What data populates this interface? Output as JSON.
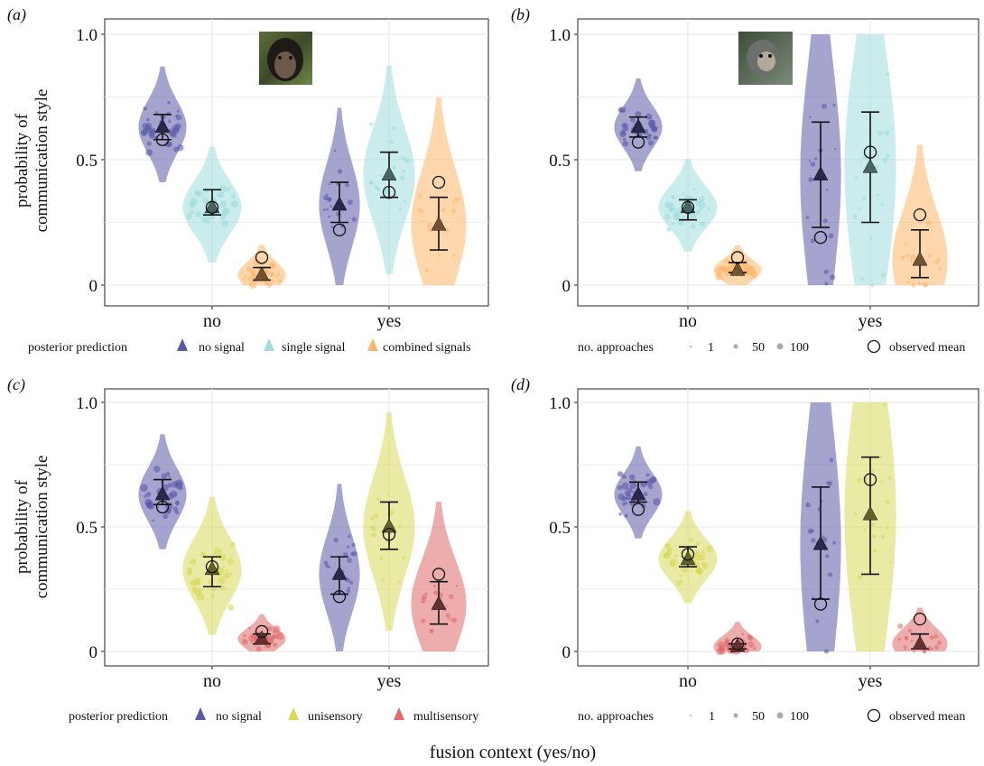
{
  "figure": {
    "shared_xlabel": "fusion context (yes/no)",
    "shared_ylabel_line1": "probability of",
    "shared_ylabel_line2": "communication style"
  },
  "legends": {
    "posterior": {
      "title": "posterior prediction",
      "items_ab": [
        "no signal",
        "single signal",
        "combined signals"
      ],
      "items_cd": [
        "no signal",
        "unisensory",
        "multisensory"
      ]
    },
    "approaches": {
      "title": "no. approaches",
      "sizes": [
        "1",
        "50",
        "100"
      ],
      "observed": "observed mean"
    }
  },
  "colors": {
    "no_signal": "#5b5aa8",
    "single_signal": "#9fdcdc",
    "combined_signals": "#fdb66a",
    "unisensory": "#d7d95a",
    "multisensory": "#e06a6a",
    "grid": "#e6e6e6"
  },
  "images": {
    "panel_a": "chimpanzee-photo",
    "panel_b": "monkey-photo"
  },
  "chart_data": [
    {
      "panel": "(a)",
      "type": "scatter",
      "categories": [
        "no",
        "yes"
      ],
      "ylim": [
        0,
        1
      ],
      "yticks": [
        "0",
        "0.5",
        "1.0"
      ],
      "series": [
        {
          "key": "no_signal",
          "name": "no signal",
          "posterior_mean": [
            0.63,
            0.32
          ],
          "ci_low": [
            0.58,
            0.25
          ],
          "ci_high": [
            0.68,
            0.41
          ],
          "observed_mean": [
            0.58,
            0.22
          ]
        },
        {
          "key": "single_signal",
          "name": "single signal",
          "posterior_mean": [
            0.31,
            0.44
          ],
          "ci_low": [
            0.28,
            0.35
          ],
          "ci_high": [
            0.38,
            0.53
          ],
          "observed_mean": [
            0.31,
            0.37
          ]
        },
        {
          "key": "combined_signals",
          "name": "combined signals",
          "posterior_mean": [
            0.04,
            0.24
          ],
          "ci_low": [
            0.02,
            0.14
          ],
          "ci_high": [
            0.07,
            0.35
          ],
          "observed_mean": [
            0.11,
            0.41
          ]
        }
      ]
    },
    {
      "panel": "(b)",
      "type": "scatter",
      "categories": [
        "no",
        "yes"
      ],
      "ylim": [
        0,
        1
      ],
      "yticks": [
        "0",
        "0.5",
        "1.0"
      ],
      "series": [
        {
          "key": "no_signal",
          "name": "no signal",
          "posterior_mean": [
            0.63,
            0.44
          ],
          "ci_low": [
            0.59,
            0.23
          ],
          "ci_high": [
            0.67,
            0.65
          ],
          "observed_mean": [
            0.57,
            0.19
          ]
        },
        {
          "key": "single_signal",
          "name": "single signal",
          "posterior_mean": [
            0.31,
            0.47
          ],
          "ci_low": [
            0.26,
            0.25
          ],
          "ci_high": [
            0.34,
            0.69
          ],
          "observed_mean": [
            0.31,
            0.53
          ]
        },
        {
          "key": "combined_signals",
          "name": "combined signals",
          "posterior_mean": [
            0.06,
            0.1
          ],
          "ci_low": [
            0.05,
            0.03
          ],
          "ci_high": [
            0.09,
            0.22
          ],
          "observed_mean": [
            0.11,
            0.28
          ]
        }
      ]
    },
    {
      "panel": "(c)",
      "type": "scatter",
      "categories": [
        "no",
        "yes"
      ],
      "ylim": [
        0,
        1
      ],
      "yticks": [
        "0",
        "0.5",
        "1.0"
      ],
      "series": [
        {
          "key": "no_signal",
          "name": "no signal",
          "posterior_mean": [
            0.63,
            0.31
          ],
          "ci_low": [
            0.59,
            0.23
          ],
          "ci_high": [
            0.69,
            0.38
          ],
          "observed_mean": [
            0.58,
            0.22
          ]
        },
        {
          "key": "unisensory",
          "name": "unisensory",
          "posterior_mean": [
            0.33,
            0.5
          ],
          "ci_low": [
            0.26,
            0.41
          ],
          "ci_high": [
            0.38,
            0.6
          ],
          "observed_mean": [
            0.34,
            0.47
          ]
        },
        {
          "key": "multisensory",
          "name": "multisensory",
          "posterior_mean": [
            0.05,
            0.19
          ],
          "ci_low": [
            0.03,
            0.11
          ],
          "ci_high": [
            0.07,
            0.28
          ],
          "observed_mean": [
            0.08,
            0.31
          ]
        }
      ]
    },
    {
      "panel": "(d)",
      "type": "scatter",
      "categories": [
        "no",
        "yes"
      ],
      "ylim": [
        0,
        1
      ],
      "yticks": [
        "0",
        "0.5",
        "1.0"
      ],
      "series": [
        {
          "key": "no_signal",
          "name": "no signal",
          "posterior_mean": [
            0.63,
            0.43
          ],
          "ci_low": [
            0.6,
            0.21
          ],
          "ci_high": [
            0.68,
            0.66
          ],
          "observed_mean": [
            0.57,
            0.19
          ]
        },
        {
          "key": "unisensory",
          "name": "unisensory",
          "posterior_mean": [
            0.37,
            0.55
          ],
          "ci_low": [
            0.34,
            0.31
          ],
          "ci_high": [
            0.42,
            0.78
          ],
          "observed_mean": [
            0.39,
            0.69
          ]
        },
        {
          "key": "multisensory",
          "name": "multisensory",
          "posterior_mean": [
            0.02,
            0.03
          ],
          "ci_low": [
            0.01,
            0.01
          ],
          "ci_high": [
            0.03,
            0.07
          ],
          "observed_mean": [
            0.03,
            0.13
          ]
        }
      ]
    }
  ]
}
